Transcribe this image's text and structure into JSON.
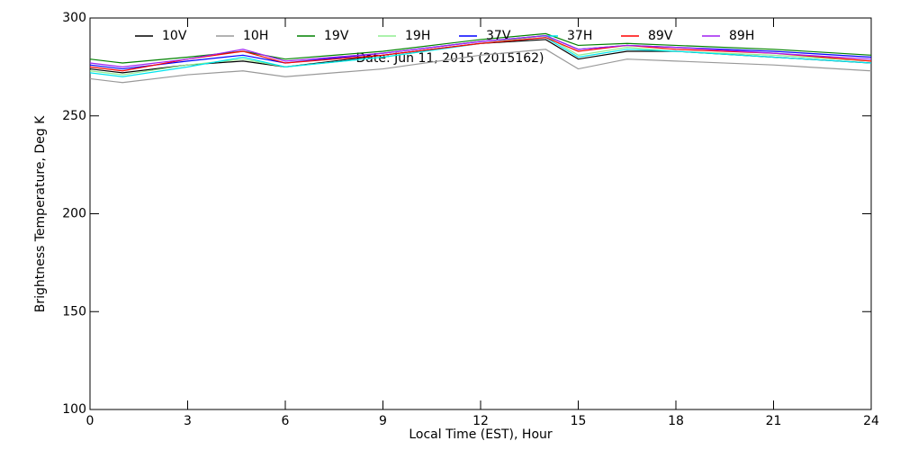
{
  "chart_data": {
    "type": "line",
    "title": "Date: Jun 11, 2015 (2015162)",
    "x_label": "Local Time (EST), Hour",
    "y_label": "Brightness Temperature, Deg K",
    "x": [
      0,
      1,
      3,
      4.7,
      6,
      9,
      12,
      14,
      15,
      16.5,
      18,
      21,
      24
    ],
    "series": [
      {
        "name": "10V",
        "color": "#000000",
        "values": [
          274,
          272,
          276,
          278,
          275,
          281,
          287,
          289,
          279,
          283,
          283,
          280,
          277
        ]
      },
      {
        "name": "10H",
        "color": "#999999",
        "values": [
          269,
          267,
          271,
          273,
          270,
          274,
          281,
          284,
          274,
          279,
          278,
          276,
          273
        ]
      },
      {
        "name": "19V",
        "color": "#008000",
        "values": [
          279,
          277,
          280,
          283,
          279,
          283,
          289,
          292,
          286,
          287,
          286,
          284,
          281
        ]
      },
      {
        "name": "19H",
        "color": "#90ee90",
        "values": [
          273,
          271,
          276,
          279,
          275,
          280,
          287,
          291,
          281,
          285,
          283,
          281,
          278
        ]
      },
      {
        "name": "37V",
        "color": "#0000ff",
        "values": [
          276,
          274,
          278,
          281,
          277,
          282,
          288,
          291,
          284,
          286,
          285,
          283,
          280
        ]
      },
      {
        "name": "37H",
        "color": "#00e5ee",
        "values": [
          272,
          270,
          275,
          280,
          275,
          280,
          287,
          290,
          280,
          284,
          283,
          280,
          277
        ]
      },
      {
        "name": "89V",
        "color": "#ff0000",
        "values": [
          275,
          273,
          279,
          283,
          277,
          281,
          287,
          290,
          283,
          286,
          284,
          282,
          278
        ]
      },
      {
        "name": "89H",
        "color": "#a020f0",
        "values": [
          277,
          275,
          279,
          284,
          278,
          282,
          288,
          291,
          284,
          286,
          285,
          282,
          279
        ]
      }
    ],
    "xlim": [
      0,
      24
    ],
    "xticks": [
      0,
      3,
      6,
      9,
      12,
      15,
      18,
      21,
      24
    ],
    "ylim": [
      100,
      300
    ],
    "yticks": [
      100,
      150,
      200,
      250,
      300
    ]
  }
}
